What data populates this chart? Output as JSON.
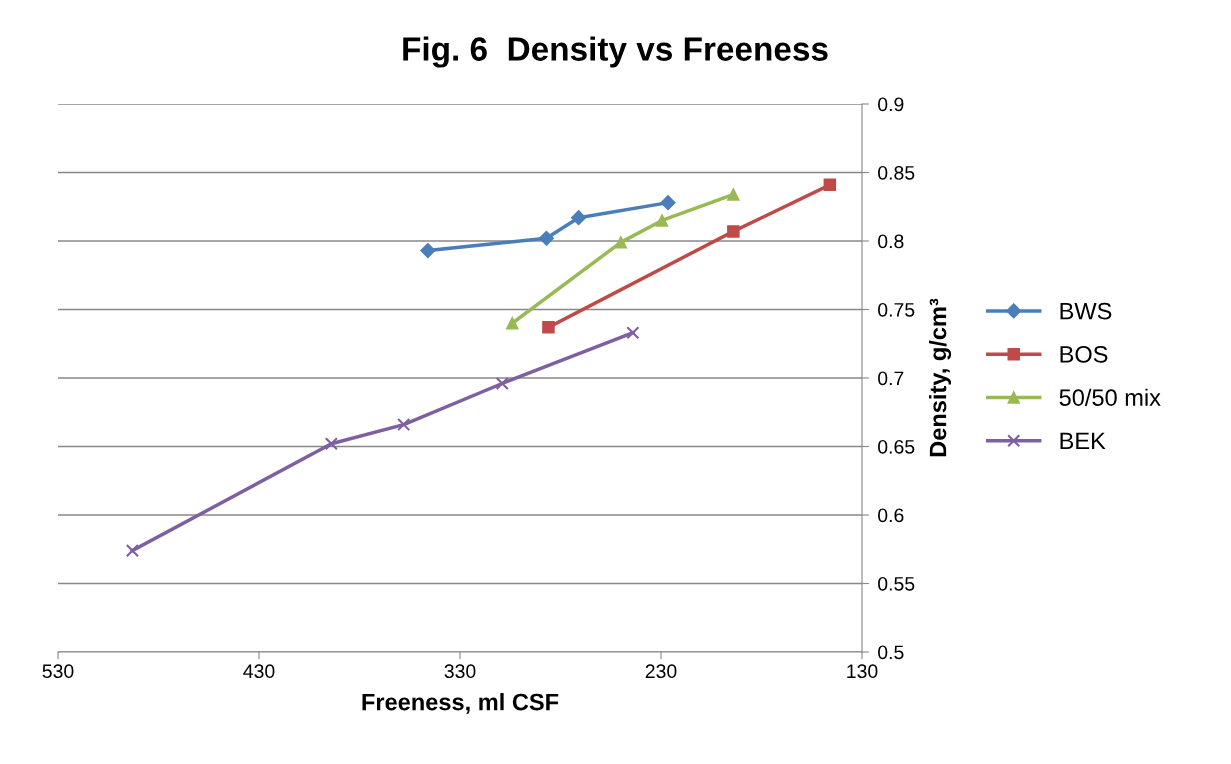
{
  "chart_data": {
    "type": "line",
    "title": "Fig. 6  Density vs Freeness",
    "xlabel": "Freeness, ml CSF",
    "ylabel": "Density, g/cm³",
    "xlim": [
      530,
      130
    ],
    "xticks": [
      530,
      430,
      330,
      230,
      130
    ],
    "ylim": [
      0.5,
      0.9
    ],
    "yticks": [
      0.5,
      0.55,
      0.6,
      0.65,
      0.7,
      0.75,
      0.8,
      0.85,
      0.9
    ],
    "grid": "y",
    "legend": "right",
    "series": [
      {
        "name": "BWS",
        "color": "#4a7ebb",
        "marker": "diamond",
        "x": [
          346,
          287,
          271,
          226.5
        ],
        "values": [
          0.793,
          0.802,
          0.817,
          0.828
        ]
      },
      {
        "name": "BOS",
        "color": "#be4b48",
        "marker": "square",
        "x": [
          286,
          194,
          146
        ],
        "values": [
          0.737,
          0.807,
          0.841
        ]
      },
      {
        "name": "50/50 mix",
        "color": "#98b954",
        "marker": "triangle",
        "x": [
          304,
          250,
          229.5,
          194
        ],
        "values": [
          0.74,
          0.799,
          0.815,
          0.834
        ]
      },
      {
        "name": "BEK",
        "color": "#7d60a0",
        "marker": "cross",
        "x": [
          493,
          394,
          358,
          309,
          244
        ],
        "values": [
          0.574,
          0.652,
          0.666,
          0.696,
          0.733
        ]
      }
    ]
  }
}
